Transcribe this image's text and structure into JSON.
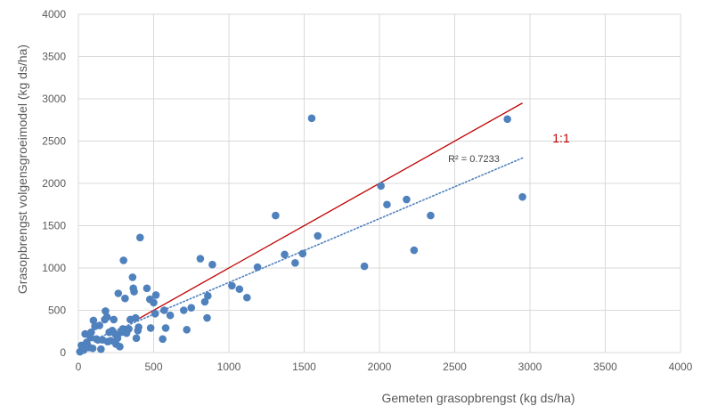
{
  "chart_data": {
    "type": "scatter",
    "xlabel": "Gemeten grasopbrengst (kg ds/ha)",
    "ylabel": "Grasopbrengst volgensgroeimodel (kg ds/ha)",
    "xlim": [
      0,
      4000
    ],
    "ylim": [
      0,
      4000
    ],
    "x_ticks": [
      "0",
      "500",
      "1000",
      "1500",
      "2000",
      "2500",
      "3000",
      "3500",
      "4000"
    ],
    "y_ticks": [
      "0",
      "500",
      "1000",
      "1500",
      "2000",
      "2500",
      "3000",
      "3500",
      "4000"
    ],
    "grid": true,
    "point_color": "#4f81bd",
    "reference_line": {
      "label": "1:1",
      "color": "#c00000",
      "x": [
        380,
        2950
      ],
      "y": [
        380,
        2950
      ]
    },
    "trendline": {
      "label": "R² = 0.7233",
      "color": "#4f81bd",
      "style": "dotted",
      "x": [
        0,
        2950
      ],
      "y": [
        75,
        2300
      ]
    },
    "points": [
      {
        "x": 10,
        "y": 10
      },
      {
        "x": 20,
        "y": 85
      },
      {
        "x": 35,
        "y": 30
      },
      {
        "x": 45,
        "y": 220
      },
      {
        "x": 55,
        "y": 120
      },
      {
        "x": 60,
        "y": 90
      },
      {
        "x": 70,
        "y": 60
      },
      {
        "x": 80,
        "y": 180
      },
      {
        "x": 85,
        "y": 240
      },
      {
        "x": 95,
        "y": 50
      },
      {
        "x": 100,
        "y": 380
      },
      {
        "x": 110,
        "y": 310
      },
      {
        "x": 120,
        "y": 160
      },
      {
        "x": 130,
        "y": 150
      },
      {
        "x": 140,
        "y": 320
      },
      {
        "x": 150,
        "y": 40
      },
      {
        "x": 160,
        "y": 150
      },
      {
        "x": 175,
        "y": 390
      },
      {
        "x": 180,
        "y": 490
      },
      {
        "x": 190,
        "y": 420
      },
      {
        "x": 195,
        "y": 130
      },
      {
        "x": 205,
        "y": 240
      },
      {
        "x": 215,
        "y": 140
      },
      {
        "x": 225,
        "y": 260
      },
      {
        "x": 235,
        "y": 390
      },
      {
        "x": 245,
        "y": 220
      },
      {
        "x": 250,
        "y": 100
      },
      {
        "x": 260,
        "y": 170
      },
      {
        "x": 265,
        "y": 700
      },
      {
        "x": 275,
        "y": 70
      },
      {
        "x": 285,
        "y": 240
      },
      {
        "x": 295,
        "y": 280
      },
      {
        "x": 300,
        "y": 1090
      },
      {
        "x": 310,
        "y": 640
      },
      {
        "x": 320,
        "y": 230
      },
      {
        "x": 335,
        "y": 280
      },
      {
        "x": 345,
        "y": 390
      },
      {
        "x": 360,
        "y": 890
      },
      {
        "x": 365,
        "y": 760
      },
      {
        "x": 370,
        "y": 720
      },
      {
        "x": 380,
        "y": 410
      },
      {
        "x": 385,
        "y": 170
      },
      {
        "x": 395,
        "y": 260
      },
      {
        "x": 400,
        "y": 300
      },
      {
        "x": 410,
        "y": 1360
      },
      {
        "x": 455,
        "y": 760
      },
      {
        "x": 475,
        "y": 630
      },
      {
        "x": 480,
        "y": 290
      },
      {
        "x": 500,
        "y": 590
      },
      {
        "x": 510,
        "y": 460
      },
      {
        "x": 515,
        "y": 680
      },
      {
        "x": 560,
        "y": 160
      },
      {
        "x": 570,
        "y": 500
      },
      {
        "x": 580,
        "y": 290
      },
      {
        "x": 610,
        "y": 440
      },
      {
        "x": 700,
        "y": 500
      },
      {
        "x": 720,
        "y": 270
      },
      {
        "x": 750,
        "y": 530
      },
      {
        "x": 810,
        "y": 1110
      },
      {
        "x": 840,
        "y": 600
      },
      {
        "x": 855,
        "y": 410
      },
      {
        "x": 860,
        "y": 670
      },
      {
        "x": 890,
        "y": 1040
      },
      {
        "x": 1020,
        "y": 790
      },
      {
        "x": 1070,
        "y": 750
      },
      {
        "x": 1120,
        "y": 650
      },
      {
        "x": 1190,
        "y": 1010
      },
      {
        "x": 1310,
        "y": 1620
      },
      {
        "x": 1370,
        "y": 1160
      },
      {
        "x": 1440,
        "y": 1060
      },
      {
        "x": 1490,
        "y": 1170
      },
      {
        "x": 1550,
        "y": 2770
      },
      {
        "x": 1590,
        "y": 1380
      },
      {
        "x": 1900,
        "y": 1020
      },
      {
        "x": 2010,
        "y": 1970
      },
      {
        "x": 2050,
        "y": 1750
      },
      {
        "x": 2180,
        "y": 1810
      },
      {
        "x": 2230,
        "y": 1210
      },
      {
        "x": 2340,
        "y": 1620
      },
      {
        "x": 2850,
        "y": 2760
      },
      {
        "x": 2950,
        "y": 1840
      }
    ]
  }
}
